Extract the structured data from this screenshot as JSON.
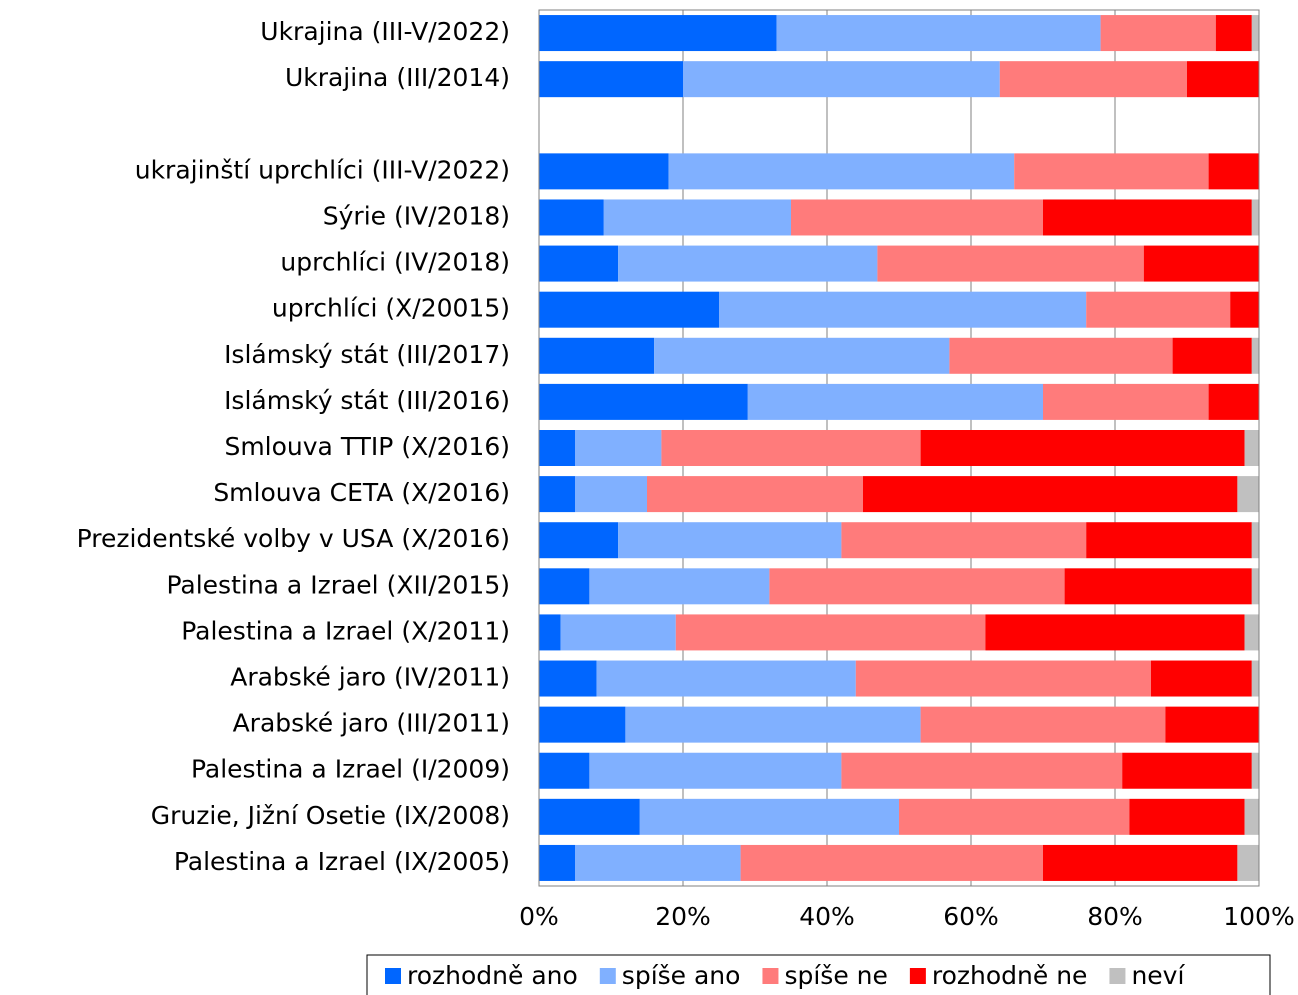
{
  "chart_data": {
    "type": "stacked-barh",
    "categories": [
      "Ukrajina (III-V/2022)",
      "Ukrajina (III/2014)",
      null,
      "ukrajinští uprchlíci (III-V/2022)",
      "Sýrie (IV/2018)",
      "uprchlíci (IV/2018)",
      "uprchlíci (X/20015)",
      "Islámský stát (III/2017)",
      "Islámský stát (III/2016)",
      "Smlouva TTIP (X/2016)",
      "Smlouva CETA (X/2016)",
      "Prezidentské volby v USA (X/2016)",
      "Palestina a Izrael (XII/2015)",
      "Palestina a Izrael (X/2011)",
      "Arabské jaro (IV/2011)",
      "Arabské jaro (III/2011)",
      "Palestina a Izrael (I/2009)",
      "Gruzie, Jižní Osetie (IX/2008)",
      "Palestina a Izrael (IX/2005)"
    ],
    "series": [
      {
        "name": "rozhodně ano",
        "color": "#0066ff",
        "values": [
          33,
          20,
          null,
          18,
          9,
          11,
          25,
          16,
          29,
          5,
          5,
          11,
          7,
          3,
          8,
          12,
          7,
          14,
          5
        ]
      },
      {
        "name": "spíše ano",
        "color": "#80b0ff",
        "values": [
          45,
          44,
          null,
          48,
          26,
          36,
          51,
          41,
          41,
          12,
          10,
          31,
          25,
          16,
          36,
          41,
          35,
          36,
          23
        ]
      },
      {
        "name": "spíše ne",
        "color": "#ff7b7b",
        "values": [
          16,
          26,
          null,
          27,
          35,
          37,
          20,
          31,
          23,
          36,
          30,
          34,
          41,
          43,
          41,
          34,
          39,
          32,
          42
        ]
      },
      {
        "name": "rozhodně ne",
        "color": "#ff0000",
        "values": [
          5,
          10,
          null,
          7,
          29,
          16,
          4,
          11,
          7,
          45,
          52,
          23,
          26,
          36,
          14,
          13,
          18,
          16,
          27
        ]
      },
      {
        "name": "neví",
        "color": "#c0c0c0",
        "values": [
          1,
          0,
          null,
          0,
          1,
          0,
          0,
          1,
          0,
          2,
          3,
          1,
          1,
          2,
          1,
          0,
          1,
          2,
          3
        ]
      }
    ],
    "xlim": [
      0,
      100
    ],
    "xticks": [
      {
        "value": 0,
        "label": "0%"
      },
      {
        "value": 20,
        "label": "20%"
      },
      {
        "value": 40,
        "label": "40%"
      },
      {
        "value": 60,
        "label": "60%"
      },
      {
        "value": 80,
        "label": "80%"
      },
      {
        "value": 100,
        "label": "100%"
      }
    ],
    "grid": true
  }
}
